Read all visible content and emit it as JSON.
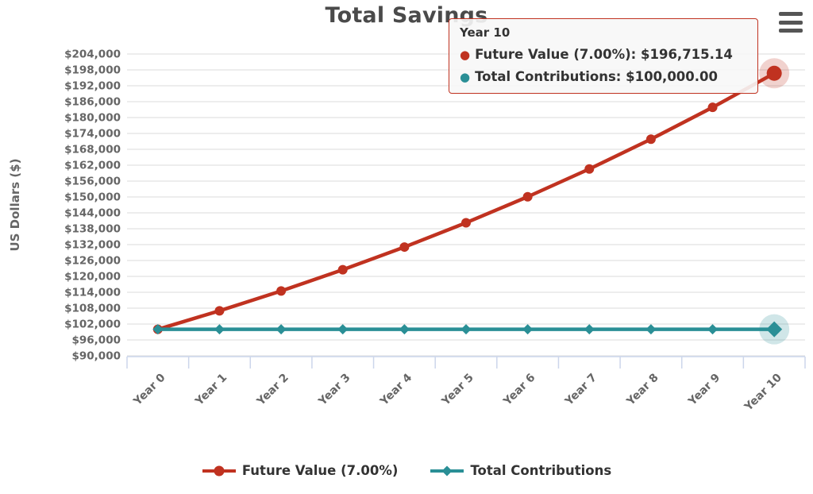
{
  "header": {
    "title": "Total Savings"
  },
  "menu": {
    "icon": "hamburger-icon"
  },
  "tooltip": {
    "title": "Year 10",
    "rows": [
      {
        "text": "Future Value (7.00%): $196,715.14",
        "color": "#c03220"
      },
      {
        "text": "Total Contributions: $100,000.00",
        "color": "#2a8f96"
      }
    ],
    "border_color": "#c03220",
    "background": "#f7f7f7"
  },
  "chart_data": {
    "type": "line",
    "title": "Total Savings",
    "xlabel": "",
    "ylabel": "US Dollars ($)",
    "categories": [
      "Year 0",
      "Year 1",
      "Year 2",
      "Year 3",
      "Year 4",
      "Year 5",
      "Year 6",
      "Year 7",
      "Year 8",
      "Year 9",
      "Year 10"
    ],
    "series": [
      {
        "name": "Future Value (7.00%)",
        "color": "#c03220",
        "marker": "circle",
        "values": [
          100000,
          107000,
          114490,
          122504.15,
          131079.6,
          140255.17,
          150073.04,
          160578.15,
          171818.62,
          183845.92,
          196715.14
        ],
        "hover_index": 10
      },
      {
        "name": "Total Contributions",
        "color": "#2a8f96",
        "marker": "diamond",
        "values": [
          100000,
          100000,
          100000,
          100000,
          100000,
          100000,
          100000,
          100000,
          100000,
          100000,
          100000
        ],
        "hover_index": 10
      }
    ],
    "ylim": [
      90000,
      204000
    ],
    "ytick_step": 6000,
    "ytick_labels": [
      "$90,000",
      "$96,000",
      "$102,000",
      "$108,000",
      "$114,000",
      "$120,000",
      "$126,000",
      "$132,000",
      "$138,000",
      "$144,000",
      "$150,000",
      "$156,000",
      "$162,000",
      "$168,000",
      "$174,000",
      "$180,000",
      "$186,000",
      "$192,000",
      "$198,000",
      "$204,000"
    ],
    "grid": true,
    "legend_position": "bottom",
    "colors": {
      "grid": "#e7e7e7",
      "axis_line": "#ccd6eb",
      "tick_label": "#666666",
      "title": "#4a4a4a",
      "legend_text": "#333333"
    }
  },
  "legend": {
    "items": [
      {
        "label": "Future Value (7.00%)",
        "color": "#c03220",
        "marker": "circle"
      },
      {
        "label": "Total Contributions",
        "color": "#2a8f96",
        "marker": "diamond"
      }
    ]
  }
}
